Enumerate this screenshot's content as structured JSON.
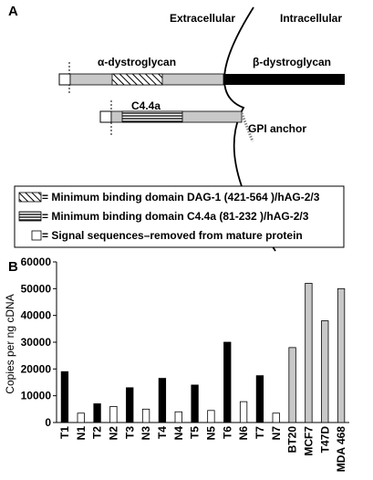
{
  "panel_a": {
    "label": "A",
    "extracellular": "Extracellular",
    "intracellular": "Intracellular",
    "alpha_dg": "α-dystroglycan",
    "beta_dg": "β-dystroglycan",
    "c44a": "C4.4a",
    "gpi": "GPI anchor",
    "legend": [
      {
        "pattern": "diagonal-hatch",
        "text": "= Minimum binding domain DAG-1 (421-564 )/hAG-2/3"
      },
      {
        "pattern": "horizontal-lines",
        "text": "= Minimum binding domain C4.4a (81-232 )/hAG-2/3"
      },
      {
        "pattern": "open-box",
        "text": "= Signal sequences–removed from mature protein"
      }
    ],
    "colors": {
      "alpha": "#c8c8c8",
      "beta": "#000000"
    }
  },
  "panel_b": {
    "label": "B"
  },
  "chart_data": {
    "type": "bar",
    "ylabel": "Copies per ng cDNA",
    "ylim": [
      0,
      60000
    ],
    "yticks": [
      0,
      10000,
      20000,
      30000,
      40000,
      50000,
      60000
    ],
    "categories": [
      "T1",
      "N1",
      "T2",
      "N2",
      "T3",
      "N3",
      "T4",
      "N4",
      "T5",
      "N5",
      "T6",
      "N6",
      "T7",
      "N7",
      "BT20",
      "MCF7",
      "T47D",
      "MDA 468"
    ],
    "values": [
      19000,
      3500,
      7000,
      6000,
      13000,
      5000,
      16500,
      4000,
      14000,
      4500,
      30000,
      7800,
      17500,
      3500,
      28000,
      52000,
      38000,
      50000
    ],
    "groups": [
      "tumor",
      "normal",
      "tumor",
      "normal",
      "tumor",
      "normal",
      "tumor",
      "normal",
      "tumor",
      "normal",
      "tumor",
      "normal",
      "tumor",
      "normal",
      "cell_line",
      "cell_line",
      "cell_line",
      "cell_line"
    ],
    "group_colors": {
      "tumor": "#000000",
      "normal": "#ffffff",
      "cell_line": "#c8c8c8"
    }
  }
}
